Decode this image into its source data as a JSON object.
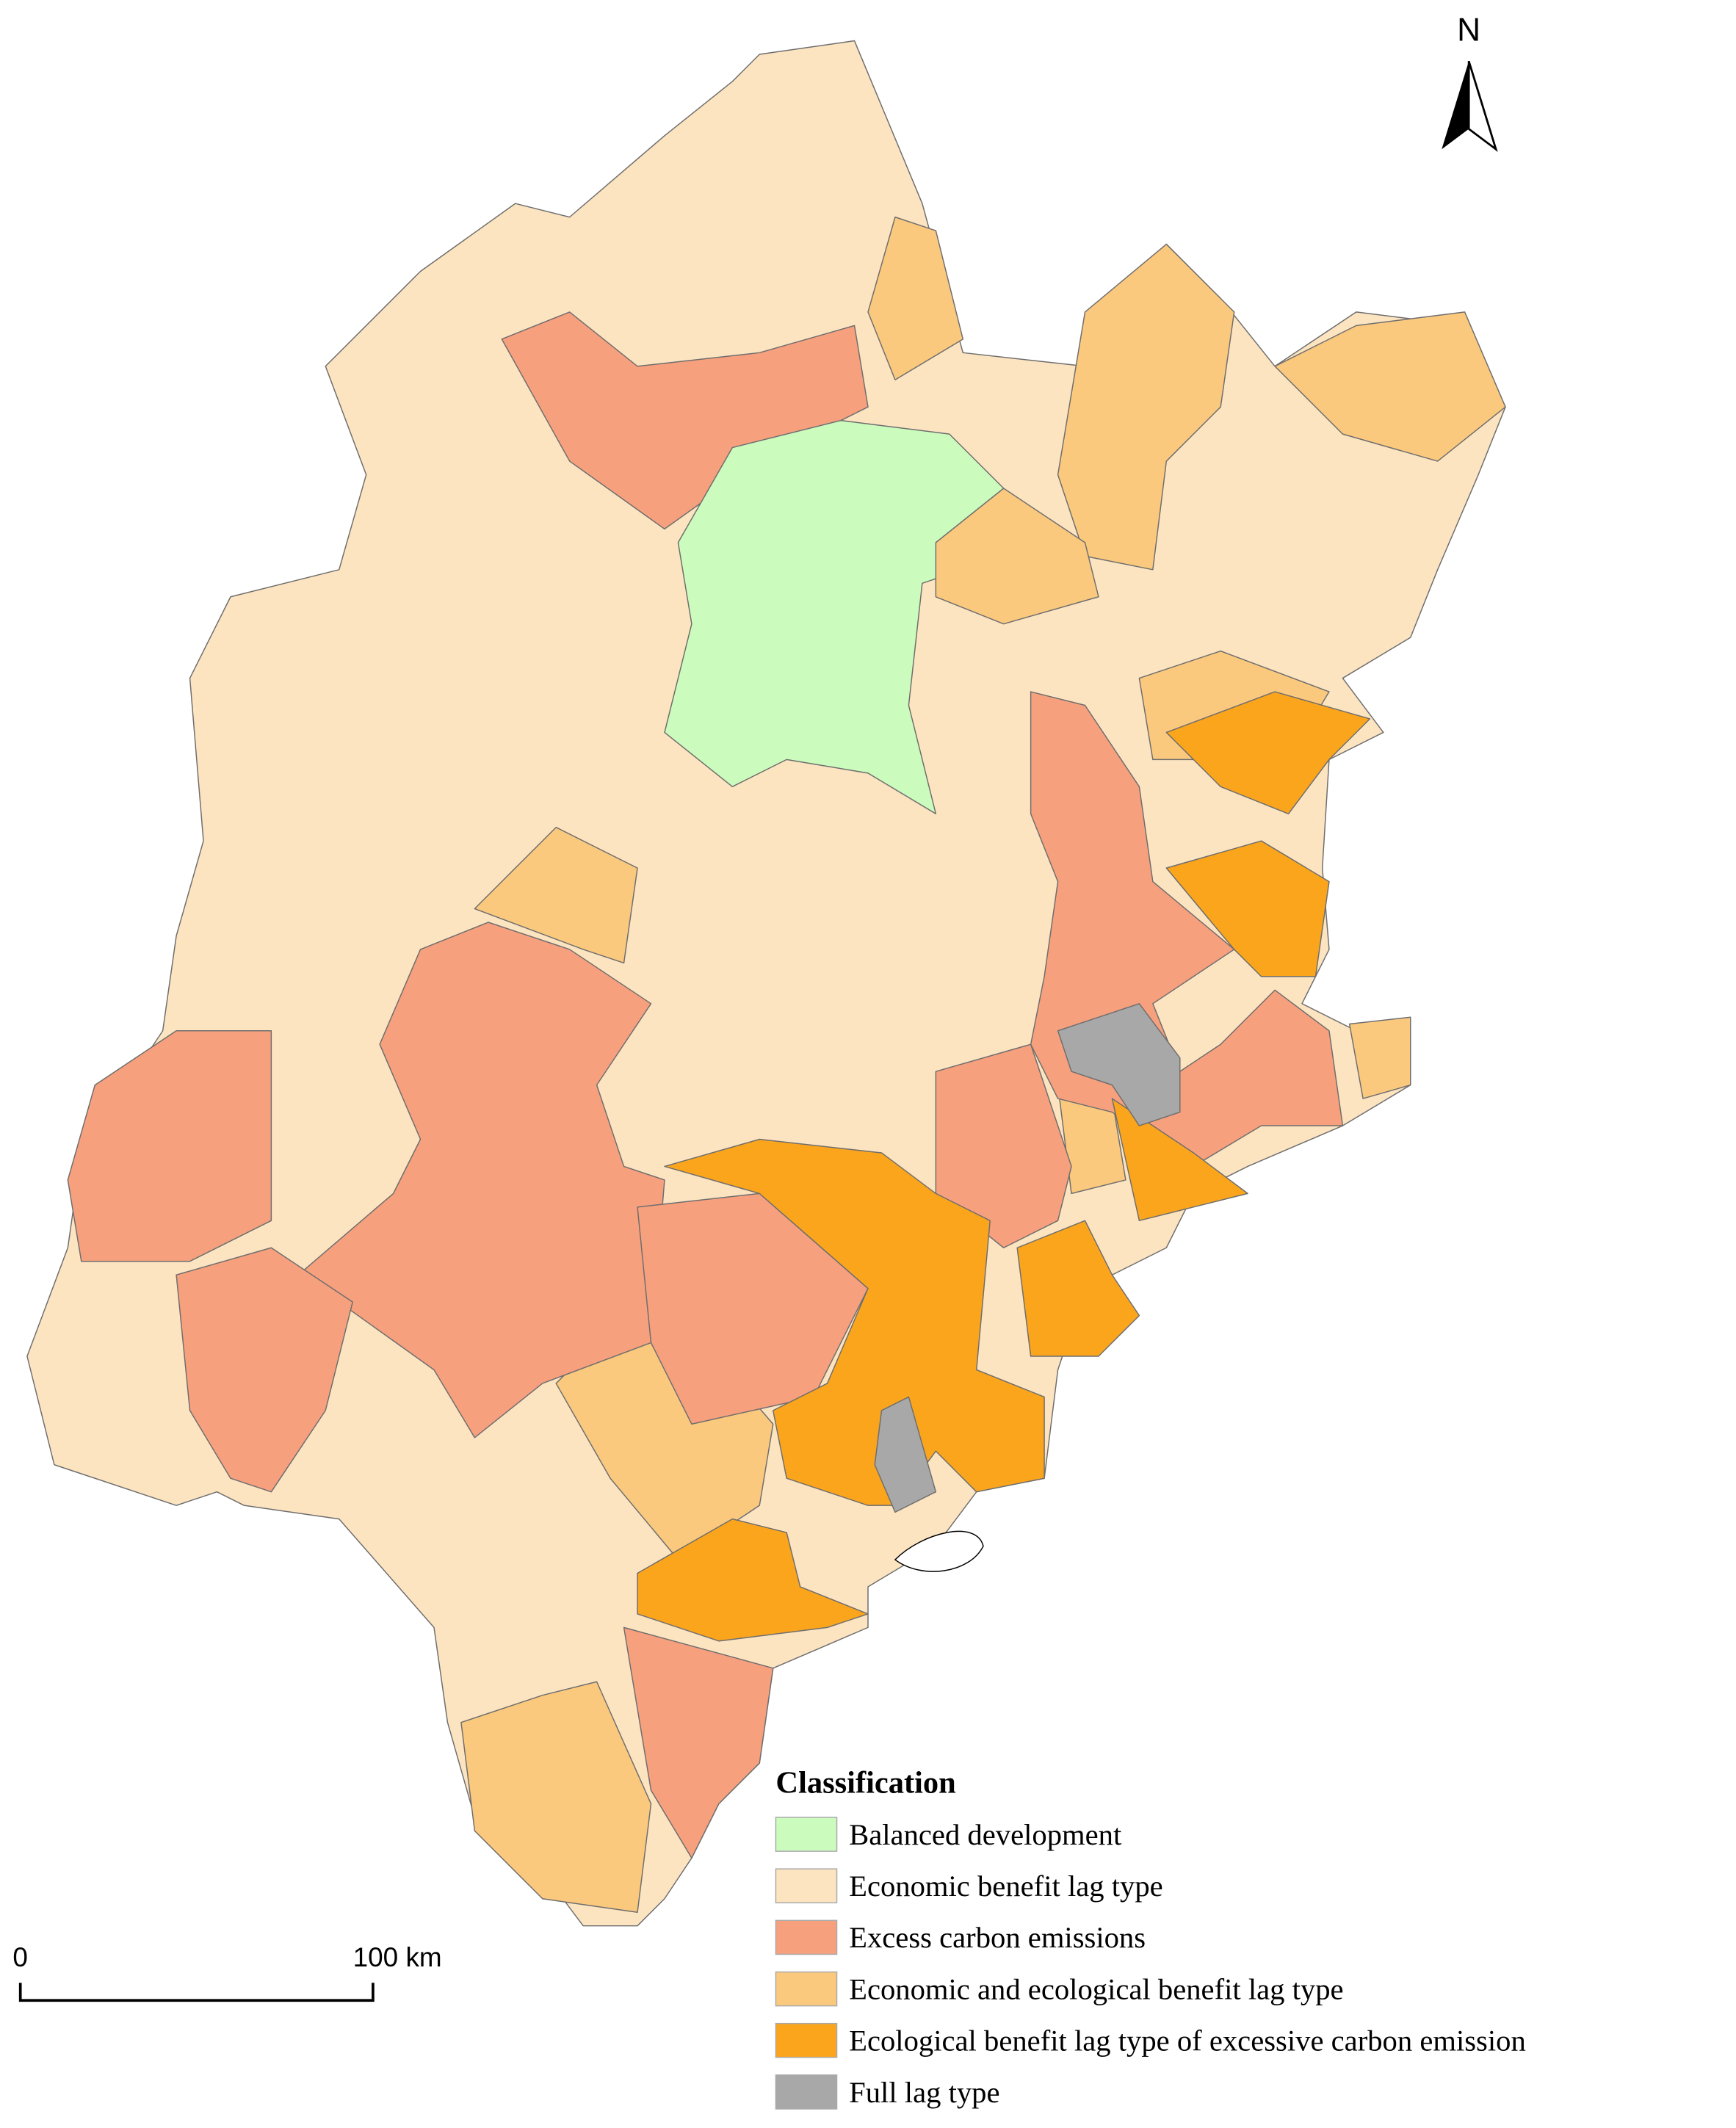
{
  "north_arrow": {
    "label": "N"
  },
  "scale_bar": {
    "labels": [
      "0",
      "100 km"
    ]
  },
  "legend": {
    "title": "Classification",
    "items": [
      {
        "label": "Balanced development",
        "color": "#ccfcbd"
      },
      {
        "label": "Economic benefit lag type",
        "color": "#fde4c0"
      },
      {
        "label": "Excess carbon emissions",
        "color": "#f7a07e"
      },
      {
        "label": "Economic and ecological benefit lag type",
        "color": "#fbc97e"
      },
      {
        "label": "Ecological benefit lag type of excessive carbon emission",
        "color": "#fba51d"
      },
      {
        "label": "Full lag type",
        "color": "#a8a8a8"
      }
    ]
  }
}
